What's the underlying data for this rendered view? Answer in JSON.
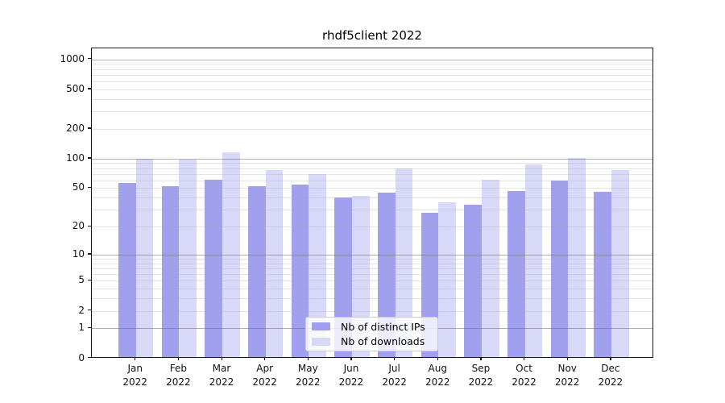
{
  "chart_data": {
    "type": "bar",
    "title": "rhdf5client 2022",
    "categories": [
      "Jan",
      "Feb",
      "Mar",
      "Apr",
      "May",
      "Jun",
      "Jul",
      "Aug",
      "Sep",
      "Oct",
      "Nov",
      "Dec"
    ],
    "xtick_year": "2022",
    "series": [
      {
        "name": "Nb of distinct IPs",
        "color": "#a0a0ee",
        "values": [
          57,
          52,
          61,
          52,
          54,
          40,
          45,
          28,
          34,
          47,
          60,
          46
        ]
      },
      {
        "name": "Nb of downloads",
        "color": "#d8d8f8",
        "values": [
          100,
          97,
          116,
          77,
          70,
          42,
          80,
          36,
          61,
          87,
          101,
          77
        ]
      }
    ],
    "yscale": "log10(value+1)",
    "yticks": [
      0,
      1,
      2,
      5,
      10,
      20,
      50,
      100,
      200,
      500,
      1000
    ],
    "ylim": [
      0,
      1300
    ],
    "grid": true,
    "gridlines_over_bars": true,
    "legend_position": "bottom-center",
    "background": "#ffffff",
    "major_grid_values": [
      1,
      10,
      100,
      1000
    ],
    "minor_grid_values": [
      2,
      3,
      4,
      5,
      6,
      7,
      8,
      9,
      20,
      30,
      40,
      50,
      60,
      70,
      80,
      90,
      200,
      300,
      400,
      500,
      600,
      700,
      800,
      900
    ]
  }
}
